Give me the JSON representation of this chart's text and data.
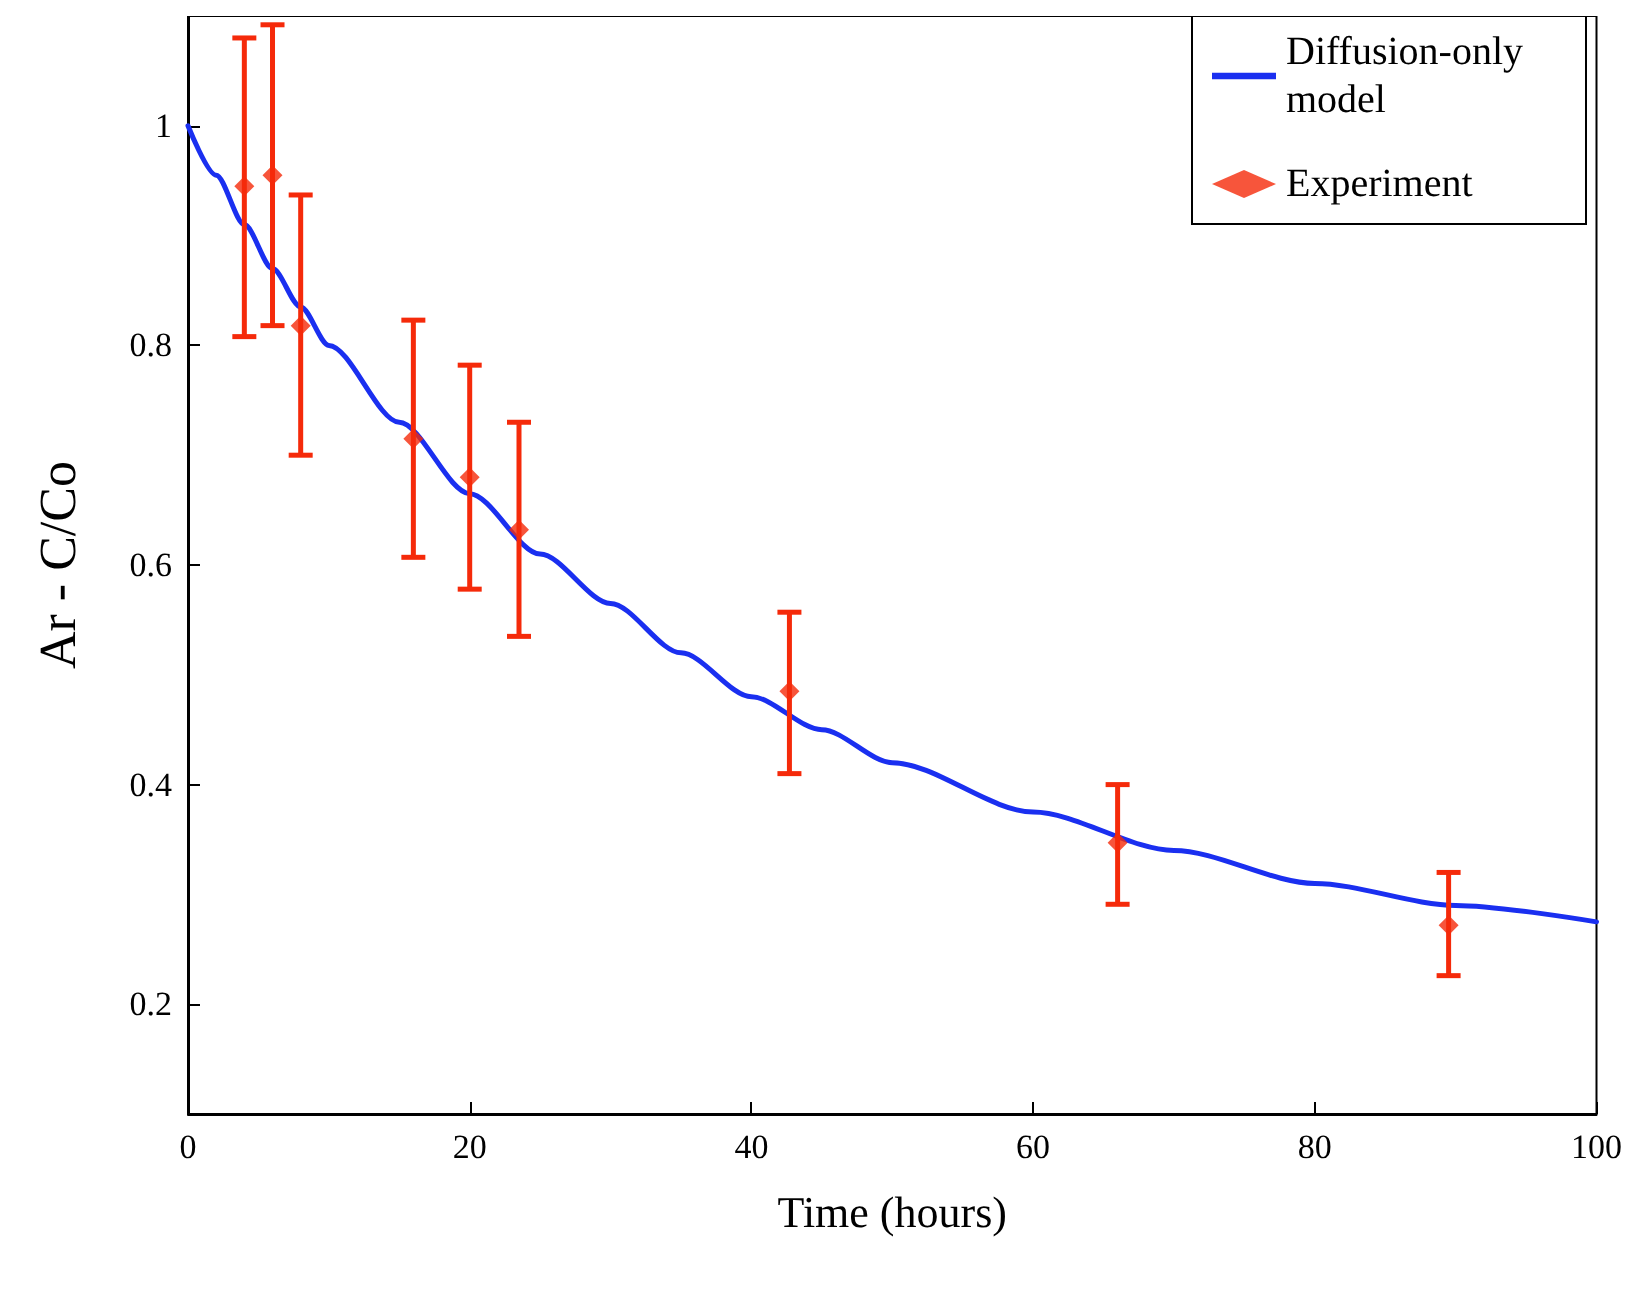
{
  "chart_data": {
    "type": "scatter",
    "xlabel": "Time (hours)",
    "ylabel": "Ar - C/Co",
    "xlim": [
      0,
      100
    ],
    "xticks": [
      0,
      20,
      40,
      60,
      80,
      100
    ],
    "ylim": [
      0.1,
      1.1
    ],
    "yticks": [
      0.2,
      0.4,
      0.6,
      0.8,
      1
    ],
    "legend": "top right",
    "grid": false,
    "series": [
      {
        "name": "Diffusion-only model",
        "type": "line",
        "color": "#1a2ff0",
        "marker": "none",
        "line_style": "solid",
        "x": [
          0,
          2,
          4,
          6,
          8,
          10,
          15,
          20,
          25,
          30,
          35,
          40,
          45,
          50,
          60,
          70,
          80,
          90,
          100
        ],
        "values": [
          1,
          0.955,
          0.91,
          0.87,
          0.835,
          0.8,
          0.73,
          0.665,
          0.61,
          0.565,
          0.52,
          0.48,
          0.45,
          0.42,
          0.375,
          0.34,
          0.31,
          0.29,
          0.275
        ]
      },
      {
        "name": "Experiment",
        "color": "#f52a0a",
        "marker": "diamond",
        "x": [
          4,
          6,
          8,
          16,
          20,
          23.5,
          42.7,
          66,
          89.5
        ],
        "values": [
          0.945,
          0.955,
          0.818,
          0.715,
          0.68,
          0.632,
          0.485,
          0.347,
          0.272
        ],
        "errors": [
          [
            0.808,
            1.08
          ],
          [
            0.818,
            1.092
          ],
          [
            0.7,
            0.937
          ],
          [
            0.607,
            0.823
          ],
          [
            0.578,
            0.782
          ],
          [
            0.535,
            0.73
          ],
          [
            0.41,
            0.557
          ],
          [
            0.291,
            0.4
          ],
          [
            0.226,
            0.32
          ]
        ]
      }
    ]
  }
}
